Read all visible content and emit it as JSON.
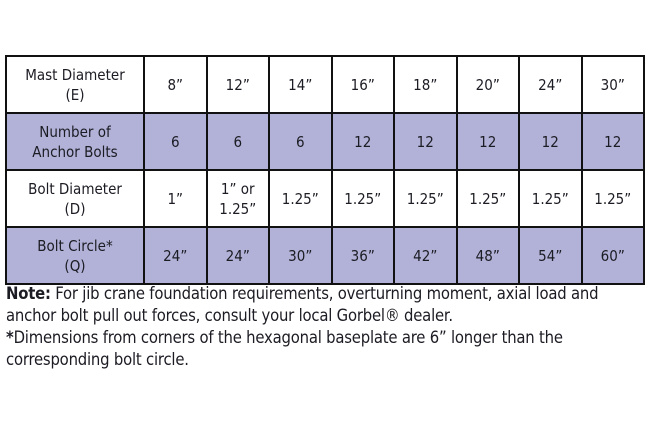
{
  "table": {
    "rows": [
      {
        "label_lines": [
          "Mast Diameter",
          "(E)"
        ],
        "values": [
          "8”",
          "12”",
          "14”",
          "16”",
          "18”",
          "20”",
          "24”",
          "30”"
        ],
        "shaded": false
      },
      {
        "label_lines": [
          "Number of",
          "Anchor Bolts"
        ],
        "values": [
          "6",
          "6",
          "6",
          "12",
          "12",
          "12",
          "12",
          "12"
        ],
        "shaded": true
      },
      {
        "label_lines": [
          "Bolt Diameter",
          "(D)"
        ],
        "values": [
          "1”",
          "1” or 1.25”",
          "1.25”",
          "1.25”",
          "1.25”",
          "1.25”",
          "1.25”",
          "1.25”"
        ],
        "shaded": false
      },
      {
        "label_lines": [
          "Bolt Circle*",
          "(Q)"
        ],
        "values": [
          "24”",
          "24”",
          "30”",
          "36”",
          "42”",
          "48”",
          "54”",
          "60”"
        ],
        "shaded": true
      }
    ],
    "shade_color": "#b2b2d8"
  },
  "notes": {
    "note_label": "Note:",
    "note_text": " For jib crane foundation requirements, overturning moment, axial load and anchor bolt pull out forces, consult your local Gorbel® dealer.",
    "footnote_mark": "*",
    "footnote_text": "Dimensions from corners of the hexagonal baseplate are 6” longer than the corresponding bolt circle."
  }
}
